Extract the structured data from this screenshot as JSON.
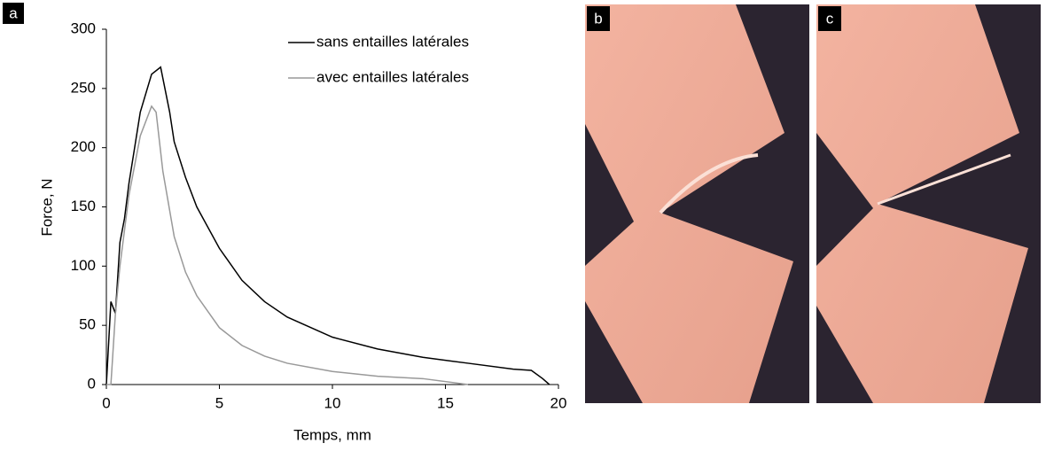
{
  "chart_data": {
    "type": "line",
    "panel_label": "a",
    "xlabel": "Temps, mm",
    "ylabel": "Force, N",
    "xlim": [
      0,
      20
    ],
    "xticks": [
      0,
      5,
      10,
      15,
      20
    ],
    "ylim": [
      0,
      300
    ],
    "yticks": [
      0,
      50,
      100,
      150,
      200,
      250,
      300
    ],
    "legend": "upper right",
    "series": [
      {
        "name": "sans entailles latérales",
        "color": "#000000",
        "x": [
          0,
          0.2,
          0.4,
          0.6,
          0.8,
          1,
          1.5,
          2,
          2.4,
          2.8,
          3,
          3.5,
          4,
          5,
          6,
          7,
          8,
          10,
          12,
          14,
          16,
          18,
          18.8,
          19.3,
          19.6
        ],
        "values": [
          0,
          70,
          60,
          120,
          140,
          170,
          230,
          262,
          268,
          230,
          205,
          175,
          150,
          115,
          88,
          70,
          57,
          40,
          30,
          23,
          18,
          13,
          12,
          5,
          0
        ]
      },
      {
        "name": "avec entailles latérales",
        "color": "#999999",
        "x": [
          0,
          0.2,
          0.4,
          0.6,
          0.8,
          1,
          1.5,
          2,
          2.2,
          2.5,
          3,
          3.5,
          4,
          5,
          6,
          7,
          8,
          10,
          12,
          14,
          16
        ],
        "values": [
          0,
          0,
          60,
          100,
          130,
          160,
          210,
          235,
          230,
          180,
          125,
          95,
          75,
          48,
          33,
          24,
          18,
          11,
          7,
          5,
          0
        ]
      }
    ]
  },
  "photos": {
    "b": {
      "label": "b"
    },
    "c": {
      "label": "c"
    }
  }
}
